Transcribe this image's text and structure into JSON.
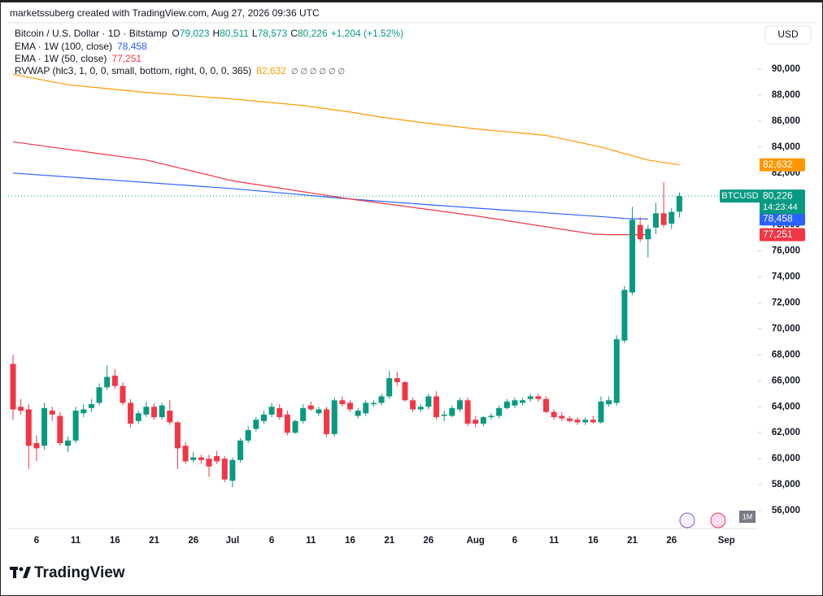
{
  "header": "marketssuberg created with TradingView.com, Aug 27, 2026 09:36 UTC",
  "footer": "TradingView",
  "currency": "USD",
  "interval_button": "1M",
  "chart_data": {
    "type": "candlestick",
    "title": "Bitcoin / U.S. Dollar · 1D · Bitstamp",
    "legend": {
      "fields": [
        {
          "key": "O",
          "label": "79,023"
        },
        {
          "key": "H",
          "label": "80,511"
        },
        {
          "key": "L",
          "label": "78,573"
        },
        {
          "key": "C",
          "label": "80,226"
        }
      ],
      "change": "+1,204 (+1.52%)"
    },
    "up_color": "#089981",
    "down_color": "#f23645",
    "categories": [
      "2026-06-03",
      "2026-06-04",
      "2026-06-05",
      "2026-06-06",
      "2026-06-07",
      "2026-06-08",
      "2026-06-09",
      "2026-06-10",
      "2026-06-11",
      "2026-06-12",
      "2026-06-13",
      "2026-06-14",
      "2026-06-15",
      "2026-06-16",
      "2026-06-17",
      "2026-06-18",
      "2026-06-19",
      "2026-06-20",
      "2026-06-21",
      "2026-06-22",
      "2026-06-23",
      "2026-06-24",
      "2026-06-25",
      "2026-06-26",
      "2026-06-27",
      "2026-06-28",
      "2026-06-29",
      "2026-06-30",
      "2026-07-01",
      "2026-07-02",
      "2026-07-03",
      "2026-07-04",
      "2026-07-05",
      "2026-07-06",
      "2026-07-07",
      "2026-07-08",
      "2026-07-09",
      "2026-07-10",
      "2026-07-11",
      "2026-07-12",
      "2026-07-13",
      "2026-07-14",
      "2026-07-15",
      "2026-07-16",
      "2026-07-17",
      "2026-07-18",
      "2026-07-19",
      "2026-07-20",
      "2026-07-21",
      "2026-07-22",
      "2026-07-23",
      "2026-07-24",
      "2026-07-25",
      "2026-07-26",
      "2026-07-27",
      "2026-07-28",
      "2026-07-29",
      "2026-07-30",
      "2026-07-31",
      "2026-08-01",
      "2026-08-02",
      "2026-08-03",
      "2026-08-04",
      "2026-08-05",
      "2026-08-06",
      "2026-08-07",
      "2026-08-08",
      "2026-08-09",
      "2026-08-10",
      "2026-08-11",
      "2026-08-12",
      "2026-08-13",
      "2026-08-14",
      "2026-08-15",
      "2026-08-16",
      "2026-08-17",
      "2026-08-18",
      "2026-08-19",
      "2026-08-20",
      "2026-08-21",
      "2026-08-22",
      "2026-08-23",
      "2026-08-24",
      "2026-08-25",
      "2026-08-26",
      "2026-08-27"
    ],
    "open": [
      67300,
      64000,
      63800,
      61200,
      61000,
      63700,
      63300,
      61000,
      61400,
      63500,
      63900,
      64300,
      65500,
      66400,
      65600,
      64300,
      62900,
      63400,
      64000,
      63200,
      63700,
      62800,
      61000,
      59900,
      60100,
      60000,
      60200,
      60000,
      58300,
      59900,
      61400,
      62300,
      62900,
      63400,
      63900,
      63400,
      62000,
      62900,
      64100,
      63500,
      63800,
      61900,
      64500,
      64300,
      63300,
      63500,
      64200,
      64300,
      64800,
      66200,
      65900,
      64500,
      63800,
      64000,
      64800,
      63300,
      63300,
      63800,
      64500,
      63000,
      62700,
      63200,
      63300,
      63900,
      64100,
      64300,
      64600,
      64800,
      64600,
      63600,
      63300,
      63100,
      63000,
      62800,
      63000,
      62800,
      64200,
      64300,
      69100,
      72800,
      78000,
      76900,
      77800,
      78900,
      78100,
      79023
    ],
    "high": [
      68000,
      64600,
      64200,
      61800,
      64300,
      64000,
      63600,
      61700,
      64000,
      64200,
      64600,
      65800,
      67200,
      66900,
      65900,
      64600,
      63700,
      64400,
      64300,
      64300,
      64500,
      62900,
      61300,
      60500,
      60300,
      60300,
      60600,
      60200,
      60100,
      61600,
      62500,
      63200,
      63700,
      64300,
      64200,
      63700,
      63000,
      64200,
      64400,
      64000,
      64000,
      64700,
      64800,
      64500,
      63900,
      64500,
      64500,
      65000,
      66800,
      66700,
      66000,
      64700,
      64200,
      65000,
      65200,
      63700,
      64100,
      64700,
      64700,
      63300,
      63300,
      63500,
      64100,
      64600,
      64700,
      64700,
      65000,
      65000,
      64800,
      63800,
      63600,
      63300,
      63200,
      63200,
      63300,
      64800,
      64800,
      69500,
      73300,
      79400,
      78600,
      78000,
      79700,
      81300,
      79300,
      80511
    ],
    "low": [
      63000,
      63400,
      59200,
      59800,
      60700,
      62900,
      61000,
      60500,
      61200,
      63200,
      63600,
      64100,
      65300,
      65400,
      64100,
      62400,
      62700,
      63200,
      63000,
      63000,
      62600,
      59200,
      59600,
      59700,
      59600,
      58600,
      59600,
      58200,
      57800,
      59700,
      61200,
      62100,
      62700,
      63200,
      63000,
      61800,
      61900,
      62700,
      63700,
      63300,
      61700,
      61700,
      64000,
      63600,
      63100,
      63300,
      64000,
      64100,
      64600,
      65600,
      64400,
      63600,
      63600,
      63800,
      63000,
      62900,
      63200,
      63600,
      62500,
      62400,
      62500,
      63000,
      63100,
      63800,
      63900,
      64100,
      64400,
      64400,
      63500,
      63000,
      62900,
      62800,
      62600,
      62600,
      62700,
      62700,
      64000,
      64100,
      68900,
      72600,
      76700,
      75500,
      77300,
      77800,
      77700,
      78573
    ],
    "close": [
      63800,
      63700,
      61000,
      60800,
      63900,
      63400,
      61200,
      61400,
      63700,
      63800,
      64200,
      65500,
      66300,
      65600,
      64300,
      62700,
      63500,
      64000,
      63200,
      64100,
      62800,
      60800,
      59800,
      60100,
      59900,
      59400,
      59800,
      58400,
      59900,
      61400,
      62200,
      63000,
      63400,
      64000,
      63200,
      62000,
      62900,
      63900,
      63800,
      63800,
      61900,
      64500,
      64200,
      63800,
      63700,
      64300,
      64300,
      64800,
      66200,
      65900,
      64500,
      63800,
      64000,
      64800,
      63200,
      63400,
      63900,
      64500,
      62700,
      62700,
      63200,
      63300,
      63900,
      64400,
      64500,
      64500,
      64800,
      64600,
      63600,
      63200,
      63100,
      62900,
      62800,
      63000,
      62800,
      64400,
      64500,
      69200,
      73000,
      78400,
      76900,
      77700,
      78900,
      78000,
      79000,
      80226
    ],
    "ylim": [
      54750,
      93570
    ],
    "yticks": [
      {
        "value": 56000,
        "label": "56,000"
      },
      {
        "value": 58000,
        "label": "58,000"
      },
      {
        "value": 60000,
        "label": "60,000"
      },
      {
        "value": 62000,
        "label": "62,000"
      },
      {
        "value": 64000,
        "label": "64,000"
      },
      {
        "value": 66000,
        "label": "66,000"
      },
      {
        "value": 68000,
        "label": "68,000"
      },
      {
        "value": 70000,
        "label": "70,000"
      },
      {
        "value": 72000,
        "label": "72,000"
      },
      {
        "value": 74000,
        "label": "74,000"
      },
      {
        "value": 76000,
        "label": "76,000"
      },
      {
        "value": 78000,
        "label": "78,000"
      },
      {
        "value": 80000,
        "label": "80,000"
      },
      {
        "value": 82000,
        "label": "82,000"
      },
      {
        "value": 84000,
        "label": "84,000"
      },
      {
        "value": 86000,
        "label": "86,000"
      },
      {
        "value": 88000,
        "label": "88,000"
      },
      {
        "value": 90000,
        "label": "90,000"
      }
    ],
    "xticks": [
      {
        "value": "2026-06-06",
        "label": "6"
      },
      {
        "value": "2026-06-11",
        "label": "11"
      },
      {
        "value": "2026-06-16",
        "label": "16"
      },
      {
        "value": "2026-06-21",
        "label": "21"
      },
      {
        "value": "2026-06-26",
        "label": "26"
      },
      {
        "value": "2026-07-01",
        "label": "Jul"
      },
      {
        "value": "2026-07-06",
        "label": "6"
      },
      {
        "value": "2026-07-11",
        "label": "11"
      },
      {
        "value": "2026-07-16",
        "label": "16"
      },
      {
        "value": "2026-07-21",
        "label": "21"
      },
      {
        "value": "2026-07-26",
        "label": "26"
      },
      {
        "value": "2026-08-01",
        "label": "Aug"
      },
      {
        "value": "2026-08-06",
        "label": "6"
      },
      {
        "value": "2026-08-11",
        "label": "11"
      },
      {
        "value": "2026-08-16",
        "label": "16"
      },
      {
        "value": "2026-08-21",
        "label": "21"
      },
      {
        "value": "2026-08-26",
        "label": "26"
      }
    ],
    "xtick_after": "Sep",
    "last_price": {
      "symbol": "BTCUSD",
      "label": "80,226",
      "countdown": "14:23:44"
    },
    "overlays": [
      {
        "name": "EMA · 1W (100, close)",
        "color": "#2962ff",
        "value_label": "78,458",
        "x": [
          "2026-06-03",
          "2026-07-01",
          "2026-07-16",
          "2026-08-01",
          "2026-08-18",
          "2026-08-20",
          "2026-08-23"
        ],
        "values": [
          82000,
          80800,
          80000,
          79300,
          78600,
          78500,
          78458
        ]
      },
      {
        "name": "EMA · 1W (50, close)",
        "color": "#f23645",
        "value_label": "77,251",
        "x": [
          "2026-06-03",
          "2026-06-20",
          "2026-07-01",
          "2026-07-16",
          "2026-08-01",
          "2026-08-16",
          "2026-08-18",
          "2026-08-23"
        ],
        "values": [
          84400,
          83000,
          81400,
          80000,
          78700,
          77300,
          77251,
          77251
        ]
      },
      {
        "name": "RVWAP (hlc3, 1, 0, 0, small, bottom, right, 0, 0, 0, 365)",
        "color": "#ff9800",
        "value_label": "82,632",
        "suffix": "∅ ∅ ∅ ∅ ∅ ∅",
        "x": [
          "2026-06-03",
          "2026-06-10",
          "2026-06-20",
          "2026-07-01",
          "2026-07-10",
          "2026-07-16",
          "2026-07-20",
          "2026-07-25",
          "2026-08-01",
          "2026-08-10",
          "2026-08-17",
          "2026-08-23",
          "2026-08-27"
        ],
        "values": [
          89600,
          88800,
          88200,
          87700,
          87200,
          86700,
          86300,
          85900,
          85400,
          84900,
          84000,
          83000,
          82632
        ]
      }
    ]
  }
}
